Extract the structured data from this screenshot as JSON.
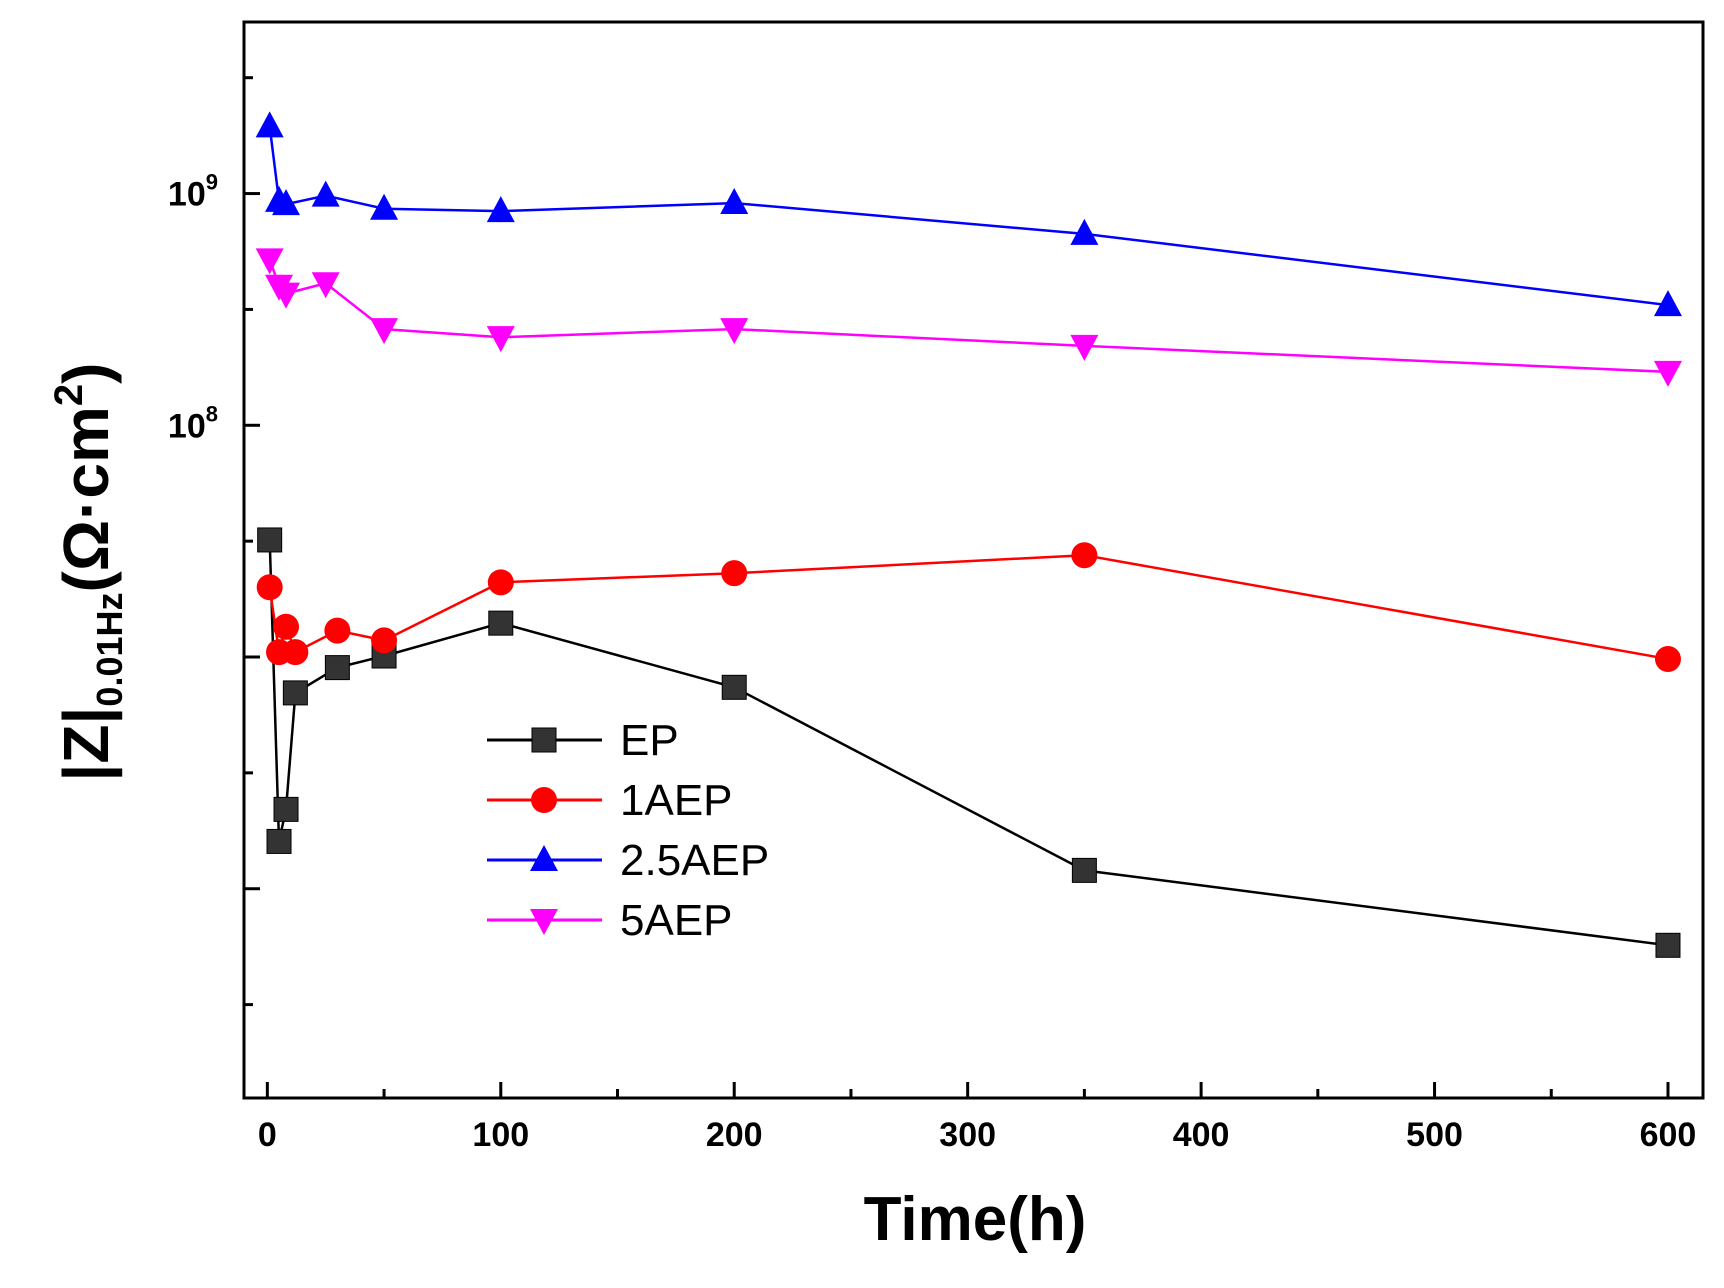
{
  "chart_data": {
    "type": "line",
    "title": "",
    "xlabel": "Time(h)",
    "ylabel": {
      "main": "|Z|",
      "subscript": "0.01Hz",
      "unit_prefix": "(Ω·cm",
      "unit_superscript": "2",
      "unit_suffix": ")"
    },
    "x_scale": "linear",
    "y_scale": "log",
    "xlim": [
      -10,
      615
    ],
    "ylim": [
      125000,
      5500000000
    ],
    "x_ticks": [
      0,
      100,
      200,
      300,
      400,
      500,
      600
    ],
    "x_tick_labels": [
      "0",
      "100",
      "200",
      "300",
      "400",
      "500",
      "600"
    ],
    "y_ticks": [
      {
        "value": 100000000,
        "base": "10",
        "exp": "8"
      },
      {
        "value": 1000000000,
        "base": "10",
        "exp": "9"
      }
    ],
    "grid": false,
    "legend_position": "lower-left",
    "series": [
      {
        "name": "EP",
        "color": "#000000",
        "marker": "square",
        "x": [
          1,
          5,
          8,
          12,
          30,
          50,
          100,
          200,
          350,
          600
        ],
        "y": [
          32000000,
          1600000,
          2200000,
          7000000,
          9000000,
          10100000,
          14000000,
          7400000,
          1200000,
          570000
        ]
      },
      {
        "name": "1AEP",
        "color": "#ff0000",
        "marker": "circle",
        "x": [
          1,
          5,
          8,
          12,
          30,
          50,
          100,
          200,
          350,
          600
        ],
        "y": [
          20000000,
          10500000,
          13500000,
          10500000,
          13000000,
          11800000,
          21000000,
          23000000,
          27500000,
          9800000
        ]
      },
      {
        "name": "2.5AEP",
        "color": "#0000ff",
        "marker": "triangle-up",
        "x": [
          1,
          5,
          8,
          25,
          50,
          100,
          200,
          350,
          600
        ],
        "y": [
          1950000000,
          930000000,
          900000000,
          980000000,
          860000000,
          840000000,
          910000000,
          670000000,
          330000000
        ]
      },
      {
        "name": "5AEP",
        "color": "#ff00ff",
        "marker": "triangle-down",
        "x": [
          1,
          5,
          8,
          25,
          50,
          100,
          200,
          350,
          600
        ],
        "y": [
          520000000,
          400000000,
          370000000,
          410000000,
          260000000,
          240000000,
          260000000,
          220000000,
          170000000
        ]
      }
    ]
  }
}
